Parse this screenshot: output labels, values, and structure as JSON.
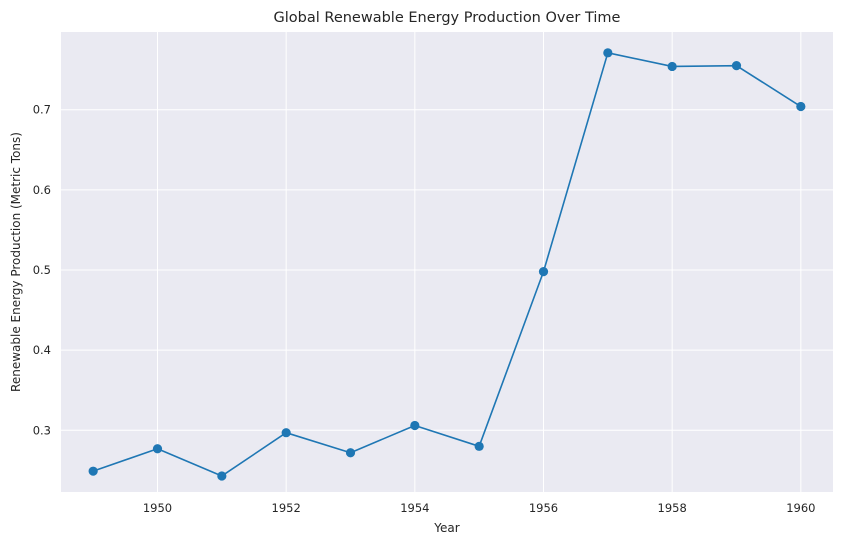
{
  "chart_data": {
    "type": "line",
    "title": "Global Renewable Energy Production Over Time",
    "xlabel": "Year",
    "ylabel": "Renewable Energy Production (Metric Tons)",
    "x": [
      1949,
      1950,
      1951,
      1952,
      1953,
      1954,
      1955,
      1956,
      1957,
      1958,
      1959,
      1960
    ],
    "series": [
      {
        "values": [
          0.249,
          0.277,
          0.243,
          0.297,
          0.272,
          0.306,
          0.28,
          0.498,
          0.771,
          0.754,
          0.755,
          0.704
        ]
      }
    ],
    "xticks": [
      1950,
      1952,
      1954,
      1956,
      1958,
      1960
    ],
    "yticks": [
      0.3,
      0.4,
      0.5,
      0.6,
      0.7
    ],
    "xlim": [
      1948.5,
      1960.5
    ],
    "ylim": [
      0.223,
      0.797
    ],
    "grid": true,
    "colors": {
      "line": "#1f77b4",
      "plot_background": "#eaeaf2",
      "grid": "#ffffff",
      "text": "#262626"
    }
  }
}
